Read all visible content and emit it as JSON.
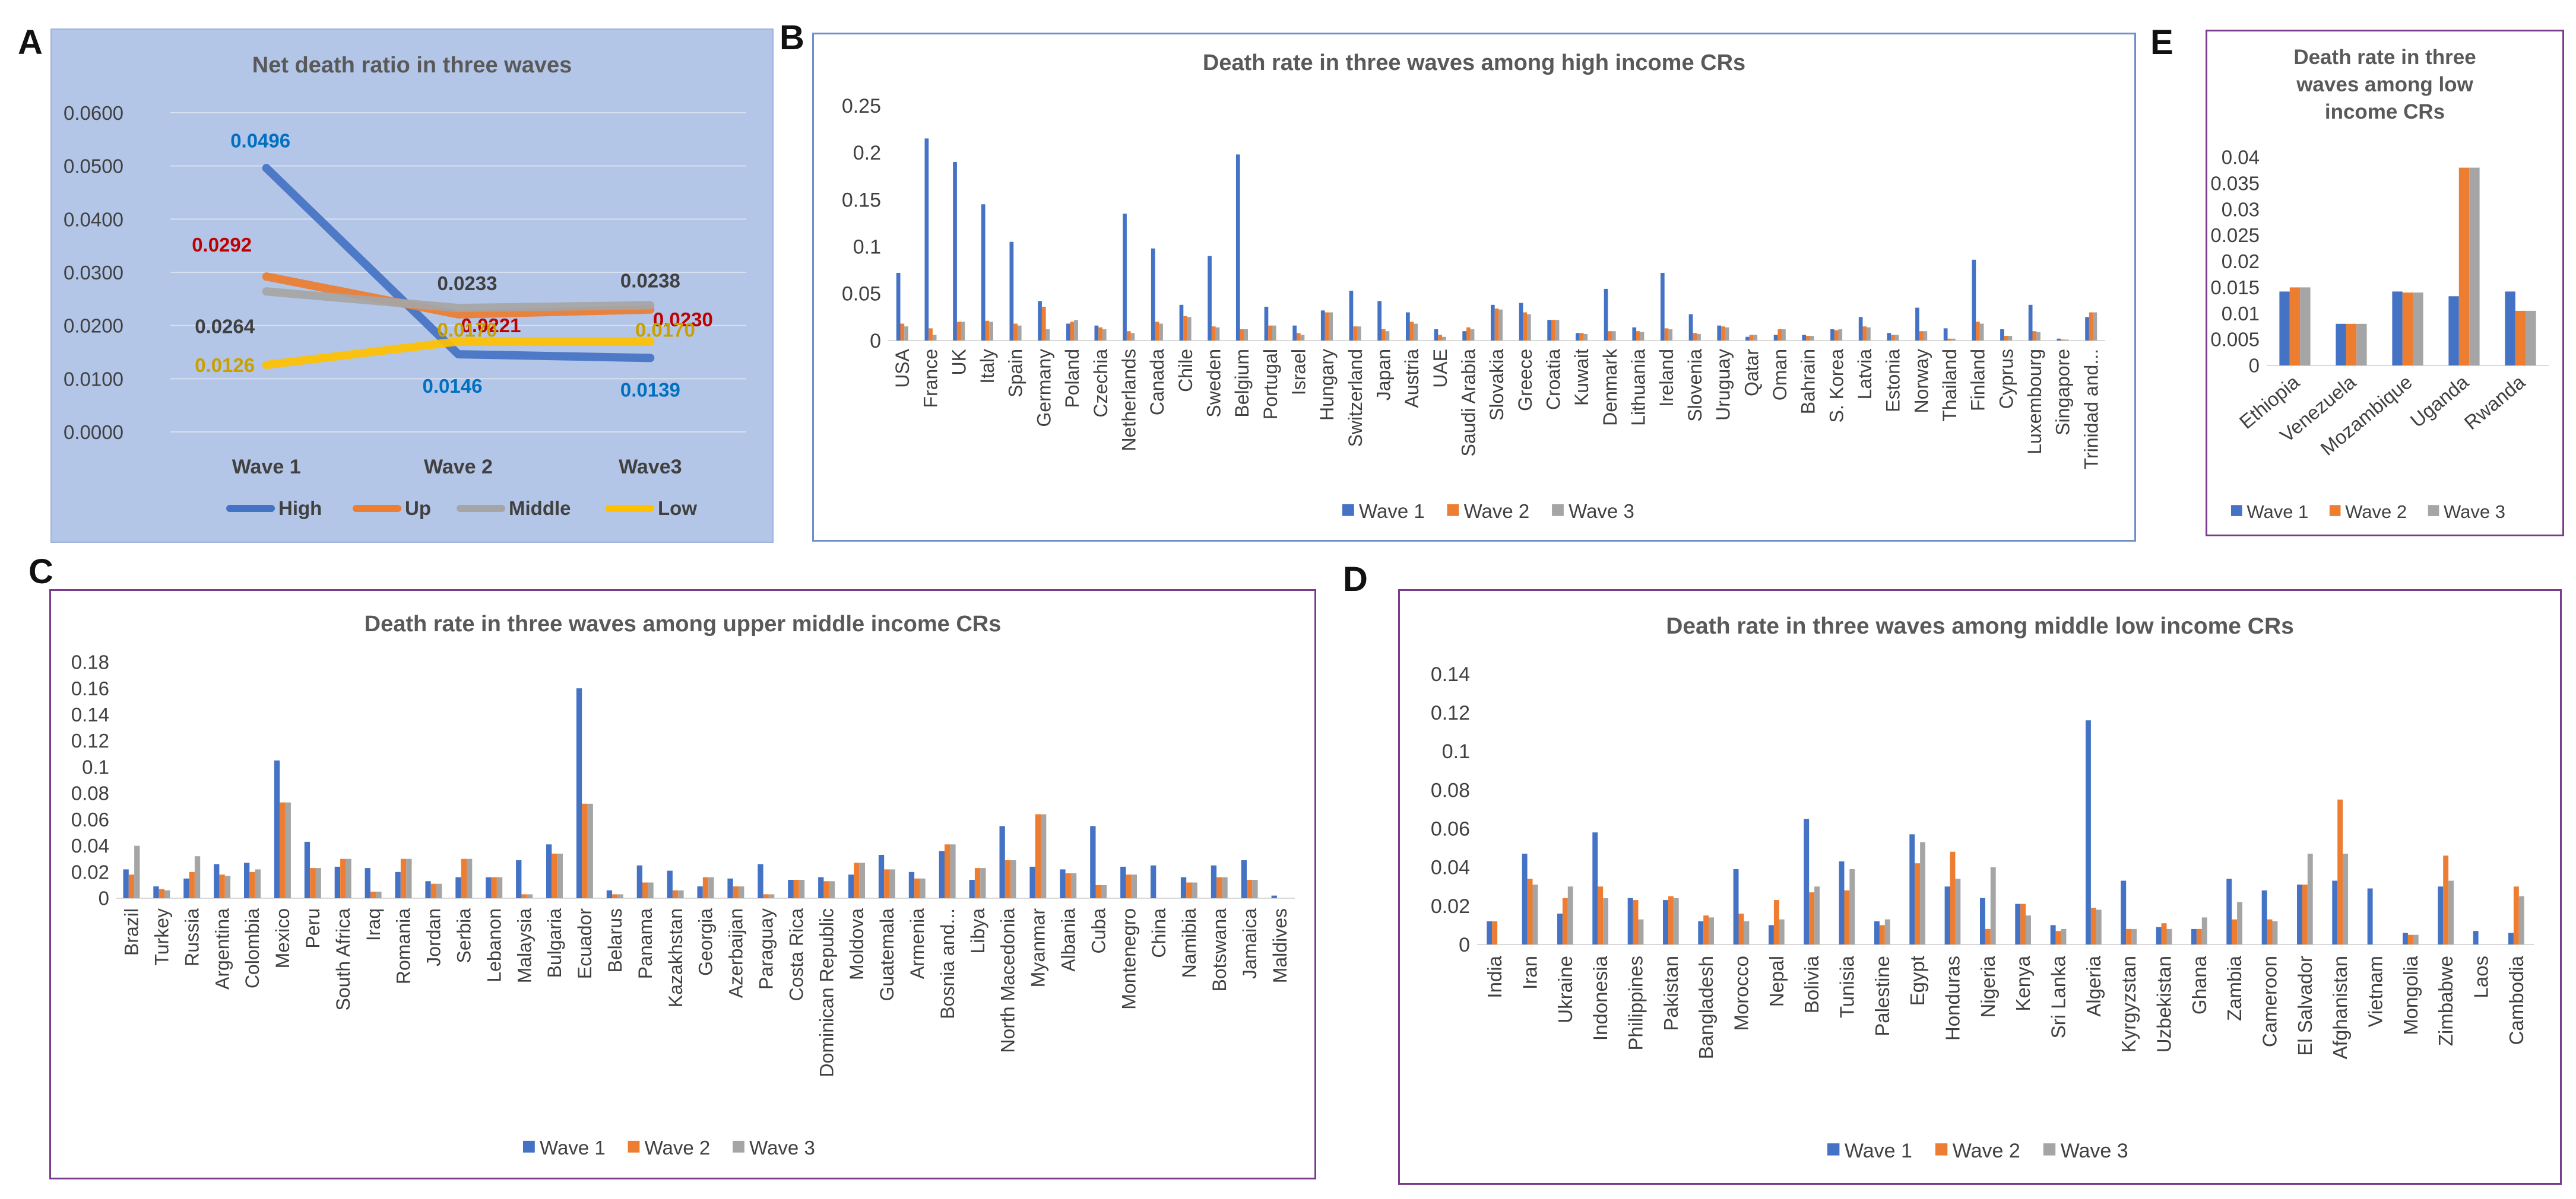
{
  "panels": {
    "a": "A",
    "b": "B",
    "c": "C",
    "d": "D",
    "e": "E"
  },
  "colors": {
    "wave1": "#4472c4",
    "wave2": "#ed7d31",
    "wave3": "#a5a5a5",
    "high": "#4472c4",
    "up": "#ed7d31",
    "middle": "#a5a5a5",
    "low": "#ffc000"
  },
  "chart_data": [
    {
      "id": "a",
      "type": "line",
      "title": "Net death ratio in three waves",
      "categories": [
        "Wave 1",
        "Wave 2",
        "Wave3"
      ],
      "ylim": [
        0,
        0.06
      ],
      "yticks": [
        "0.0000",
        "0.0100",
        "0.0200",
        "0.0300",
        "0.0400",
        "0.0500",
        "0.0600"
      ],
      "grid": true,
      "legend_position": "bottom",
      "series": [
        {
          "name": "High",
          "values": [
            0.0496,
            0.0146,
            0.0139
          ],
          "labels": [
            "0.0496",
            "0.0146",
            "0.0139"
          ],
          "label_color": "#0070c0"
        },
        {
          "name": "Up",
          "values": [
            0.0292,
            0.0221,
            0.023
          ],
          "labels": [
            "0.0292",
            "0.0221",
            "0.0230"
          ],
          "label_color": "#c00000"
        },
        {
          "name": "Middle",
          "values": [
            0.0264,
            0.0233,
            0.0238
          ],
          "labels": [
            "0.0264",
            "0.0233",
            "0.0238"
          ],
          "label_color": "#404040"
        },
        {
          "name": "Low",
          "values": [
            0.0126,
            0.017,
            0.017
          ],
          "labels": [
            "0.0126",
            "0.0170",
            "0.0170"
          ],
          "label_color": "#c9a000"
        }
      ]
    },
    {
      "id": "b",
      "type": "bar",
      "title": "Death rate in three waves among high income CRs",
      "ylim": [
        0,
        0.25
      ],
      "yticks": [
        "0",
        "0.05",
        "0.1",
        "0.15",
        "0.2",
        "0.25"
      ],
      "legend_position": "bottom",
      "categories": [
        "USA",
        "France",
        "UK",
        "Italy",
        "Spain",
        "Germany",
        "Poland",
        "Czechia",
        "Netherlands",
        "Canada",
        "Chile",
        "Sweden",
        "Belgium",
        "Portugal",
        "Israel",
        "Hungary",
        "Switzerland",
        "Japan",
        "Austria",
        "UAE",
        "Saudi Arabia",
        "Slovakia",
        "Greece",
        "Croatia",
        "Kuwait",
        "Denmark",
        "Lithuania",
        "Ireland",
        "Slovenia",
        "Uruguay",
        "Qatar",
        "Oman",
        "Bahrain",
        "S. Korea",
        "Latvia",
        "Estonia",
        "Norway",
        "Thailand",
        "Finland",
        "Cyprus",
        "Luxembourg",
        "Singapore",
        "Trinidad and..."
      ],
      "series": [
        {
          "name": "Wave 1",
          "values": [
            0.072,
            0.215,
            0.19,
            0.145,
            0.105,
            0.042,
            0.018,
            0.016,
            0.135,
            0.098,
            0.038,
            0.09,
            0.198,
            0.036,
            0.016,
            0.032,
            0.053,
            0.042,
            0.03,
            0.012,
            0.01,
            0.038,
            0.04,
            0.022,
            0.008,
            0.055,
            0.014,
            0.072,
            0.028,
            0.016,
            0.004,
            0.006,
            0.006,
            0.012,
            0.025,
            0.008,
            0.035,
            0.013,
            0.086,
            0.012,
            0.038,
            0.002,
            0.025
          ]
        },
        {
          "name": "Wave 2",
          "values": [
            0.018,
            0.013,
            0.02,
            0.021,
            0.018,
            0.036,
            0.02,
            0.014,
            0.01,
            0.02,
            0.026,
            0.015,
            0.012,
            0.016,
            0.008,
            0.03,
            0.015,
            0.012,
            0.02,
            0.006,
            0.014,
            0.034,
            0.03,
            0.022,
            0.008,
            0.01,
            0.01,
            0.013,
            0.008,
            0.015,
            0.006,
            0.012,
            0.005,
            0.011,
            0.015,
            0.006,
            0.01,
            0.002,
            0.02,
            0.005,
            0.01,
            0.001,
            0.03
          ]
        },
        {
          "name": "Wave 3",
          "values": [
            0.015,
            0.006,
            0.02,
            0.02,
            0.016,
            0.012,
            0.022,
            0.012,
            0.008,
            0.018,
            0.025,
            0.014,
            0.012,
            0.016,
            0.006,
            0.03,
            0.015,
            0.01,
            0.018,
            0.004,
            0.012,
            0.033,
            0.028,
            0.022,
            0.007,
            0.01,
            0.009,
            0.012,
            0.007,
            0.014,
            0.006,
            0.012,
            0.005,
            0.012,
            0.014,
            0.006,
            0.01,
            0.002,
            0.018,
            0.005,
            0.009,
            0.001,
            0.03
          ]
        }
      ]
    },
    {
      "id": "e",
      "type": "bar",
      "title": "Death rate in three waves among low income CRs",
      "title_lines": [
        "Death rate in three",
        "waves among low",
        "income CRs"
      ],
      "ylim": [
        0,
        0.04
      ],
      "yticks": [
        "0",
        "0.005",
        "0.01",
        "0.015",
        "0.02",
        "0.025",
        "0.03",
        "0.035",
        "0.04"
      ],
      "legend_position": "bottom",
      "categories": [
        "Ethiopia",
        "Venezuela",
        "Mozambique",
        "Uganda",
        "Rwanda"
      ],
      "series": [
        {
          "name": "Wave 1",
          "values": [
            0.0142,
            0.008,
            0.0142,
            0.0133,
            0.0142
          ]
        },
        {
          "name": "Wave 2",
          "values": [
            0.015,
            0.008,
            0.014,
            0.038,
            0.0105
          ]
        },
        {
          "name": "Wave 3",
          "values": [
            0.015,
            0.008,
            0.014,
            0.038,
            0.0105
          ]
        }
      ]
    },
    {
      "id": "c",
      "type": "bar",
      "title": "Death rate in three waves among upper middle income CRs",
      "ylim": [
        0,
        0.18
      ],
      "yticks": [
        "0",
        "0.02",
        "0.04",
        "0.06",
        "0.08",
        "0.1",
        "0.12",
        "0.14",
        "0.16",
        "0.18"
      ],
      "legend_position": "bottom",
      "categories": [
        "Brazil",
        "Turkey",
        "Russia",
        "Argentina",
        "Colombia",
        "Mexico",
        "Peru",
        "South Africa",
        "Iraq",
        "Romania",
        "Jordan",
        "Serbia",
        "Lebanon",
        "Malaysia",
        "Bulgaria",
        "Ecuador",
        "Belarus",
        "Panama",
        "Kazakhstan",
        "Georgia",
        "Azerbaijan",
        "Paraguay",
        "Costa Rica",
        "Dominican Republic",
        "Moldova",
        "Guatemala",
        "Armenia",
        "Bosnia and...",
        "Libya",
        "North Macedonia",
        "Myanmar",
        "Albania",
        "Cuba",
        "Montenegro",
        "China",
        "Namibia",
        "Botswana",
        "Jamaica",
        "Maldives"
      ],
      "series": [
        {
          "name": "Wave 1",
          "values": [
            0.022,
            0.009,
            0.015,
            0.026,
            0.027,
            0.105,
            0.043,
            0.024,
            0.023,
            0.02,
            0.013,
            0.016,
            0.016,
            0.029,
            0.041,
            0.16,
            0.006,
            0.025,
            0.021,
            0.009,
            0.015,
            0.026,
            0.014,
            0.016,
            0.018,
            0.033,
            0.02,
            0.036,
            0.014,
            0.055,
            0.024,
            0.022,
            0.055,
            0.024,
            0.025,
            0.016,
            0.025,
            0.029,
            0.002
          ]
        },
        {
          "name": "Wave 2",
          "values": [
            0.018,
            0.007,
            0.02,
            0.018,
            0.02,
            0.073,
            0.023,
            0.03,
            0.005,
            0.03,
            0.011,
            0.03,
            0.016,
            0.003,
            0.034,
            0.072,
            0.003,
            0.012,
            0.006,
            0.016,
            0.009,
            0.003,
            0.014,
            0.013,
            0.027,
            0.022,
            0.015,
            0.041,
            0.023,
            0.029,
            0.064,
            0.019,
            0.01,
            0.018,
            0.0,
            0.012,
            0.016,
            0.014,
            0.0
          ]
        },
        {
          "name": "Wave 3",
          "values": [
            0.04,
            0.006,
            0.032,
            0.017,
            0.022,
            0.073,
            0.023,
            0.03,
            0.005,
            0.03,
            0.011,
            0.03,
            0.016,
            0.003,
            0.034,
            0.072,
            0.003,
            0.012,
            0.006,
            0.016,
            0.009,
            0.003,
            0.014,
            0.013,
            0.027,
            0.022,
            0.015,
            0.041,
            0.023,
            0.029,
            0.064,
            0.019,
            0.01,
            0.018,
            0.0,
            0.012,
            0.016,
            0.014,
            0.0
          ]
        }
      ]
    },
    {
      "id": "d",
      "type": "bar",
      "title": "Death rate in three waves among middle low income CRs",
      "ylim": [
        0,
        0.14
      ],
      "yticks": [
        "0",
        "0.02",
        "0.04",
        "0.06",
        "0.08",
        "0.1",
        "0.12",
        "0.14"
      ],
      "legend_position": "bottom",
      "categories": [
        "India",
        "Iran",
        "Ukraine",
        "Indonesia",
        "Philippines",
        "Pakistan",
        "Bangladesh",
        "Morocco",
        "Nepal",
        "Bolivia",
        "Tunisia",
        "Palestine",
        "Egypt",
        "Honduras",
        "Nigeria",
        "Kenya",
        "Sri Lanka",
        "Algeria",
        "Kyrgyzstan",
        "Uzbekistan",
        "Ghana",
        "Zambia",
        "Cameroon",
        "El Salvador",
        "Afghanistan",
        "Vietnam",
        "Mongolia",
        "Zimbabwe",
        "Laos",
        "Cambodia"
      ],
      "series": [
        {
          "name": "Wave 1",
          "values": [
            0.012,
            0.047,
            0.016,
            0.058,
            0.024,
            0.023,
            0.012,
            0.039,
            0.01,
            0.065,
            0.043,
            0.012,
            0.057,
            0.03,
            0.024,
            0.021,
            0.01,
            0.116,
            0.033,
            0.009,
            0.008,
            0.034,
            0.028,
            0.031,
            0.033,
            0.029,
            0.006,
            0.03,
            0.007,
            0.006
          ]
        },
        {
          "name": "Wave 2",
          "values": [
            0.012,
            0.034,
            0.024,
            0.03,
            0.023,
            0.025,
            0.015,
            0.016,
            0.023,
            0.027,
            0.028,
            0.01,
            0.042,
            0.048,
            0.008,
            0.021,
            0.007,
            0.019,
            0.008,
            0.011,
            0.008,
            0.013,
            0.013,
            0.031,
            0.075,
            0.0,
            0.005,
            0.046,
            0.0,
            0.03
          ]
        },
        {
          "name": "Wave 3",
          "values": [
            0.0,
            0.031,
            0.03,
            0.024,
            0.013,
            0.024,
            0.014,
            0.012,
            0.013,
            0.03,
            0.039,
            0.013,
            0.053,
            0.034,
            0.04,
            0.015,
            0.008,
            0.018,
            0.008,
            0.008,
            0.014,
            0.022,
            0.012,
            0.047,
            0.047,
            0.0,
            0.005,
            0.033,
            0.0,
            0.025
          ]
        }
      ]
    }
  ]
}
